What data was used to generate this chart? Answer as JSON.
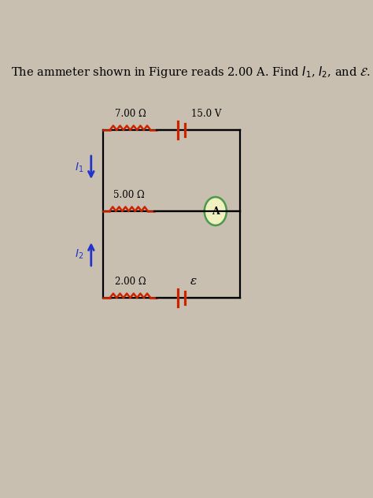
{
  "bg_color": "#c8bfb0",
  "wire_color": "#000000",
  "resistor_color": "#cc2200",
  "battery_color": "#cc2200",
  "ammeter_fill": "#f0f0c0",
  "ammeter_edge": "#4a9a4a",
  "arrow_color": "#2233cc",
  "label_7ohm": "7.00 Ω",
  "label_5ohm": "5.00 Ω",
  "label_2ohm": "2.00 Ω",
  "label_15V": "15.0 V",
  "label_emf": "ε",
  "label_A": "A",
  "label_I1": "$I_1$",
  "label_I2": "$I_2$",
  "title": "The ammeter shown in Figure reads 2.00 A. Find $I_1$, $I_2$, and $\\mathcal{E}$."
}
